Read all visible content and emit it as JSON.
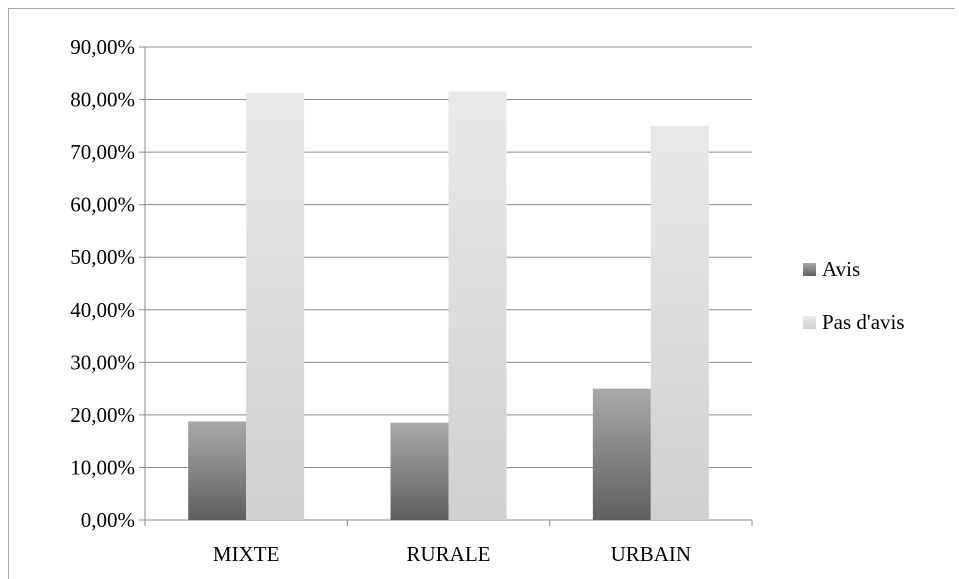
{
  "chart_data": {
    "type": "bar",
    "categories": [
      "MIXTE",
      "RURALE",
      "URBAIN"
    ],
    "series": [
      {
        "name": "Avis",
        "values": [
          18.75,
          18.5,
          25.0
        ],
        "color": "#6e6e6e"
      },
      {
        "name": "Pas d'avis",
        "values": [
          81.25,
          81.5,
          75.0
        ],
        "color": "#d9d9d9"
      }
    ],
    "ylim": [
      0,
      90
    ],
    "ytick_step": 10,
    "ytick_labels": [
      "0,00%",
      "10,00%",
      "20,00%",
      "30,00%",
      "40,00%",
      "50,00%",
      "60,00%",
      "70,00%",
      "80,00%",
      "90,00%"
    ],
    "grid": true,
    "legend_position": "right"
  }
}
